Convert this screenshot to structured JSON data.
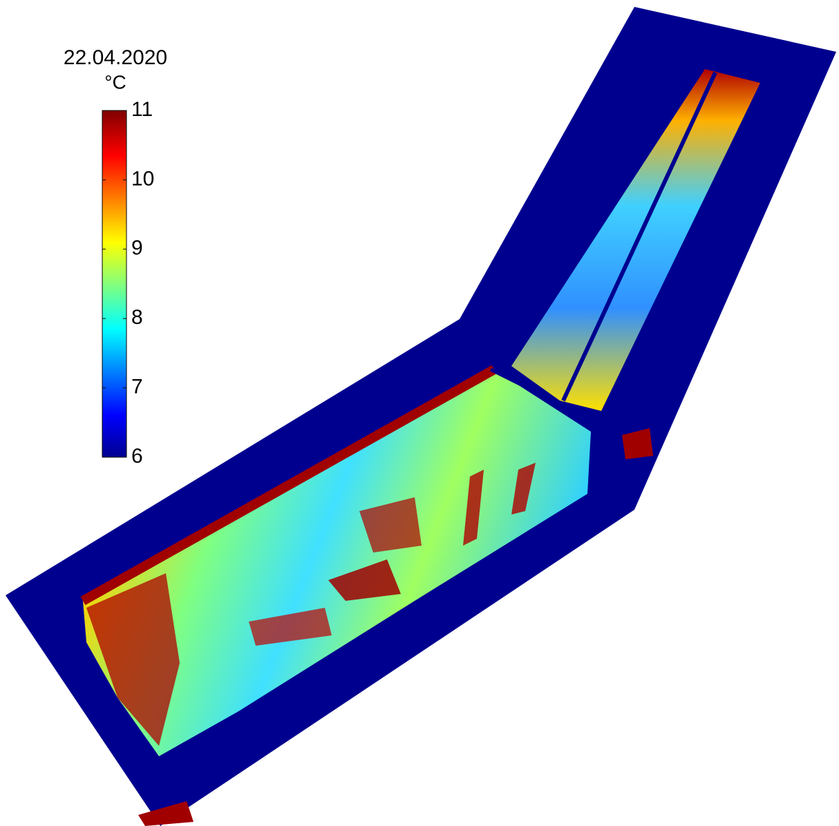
{
  "map": {
    "title": "22.04.2020",
    "unit": "°C",
    "colorbar": {
      "lim": [
        6,
        11
      ],
      "ticks": [
        6,
        7,
        8,
        9,
        10,
        11
      ]
    }
  }
}
